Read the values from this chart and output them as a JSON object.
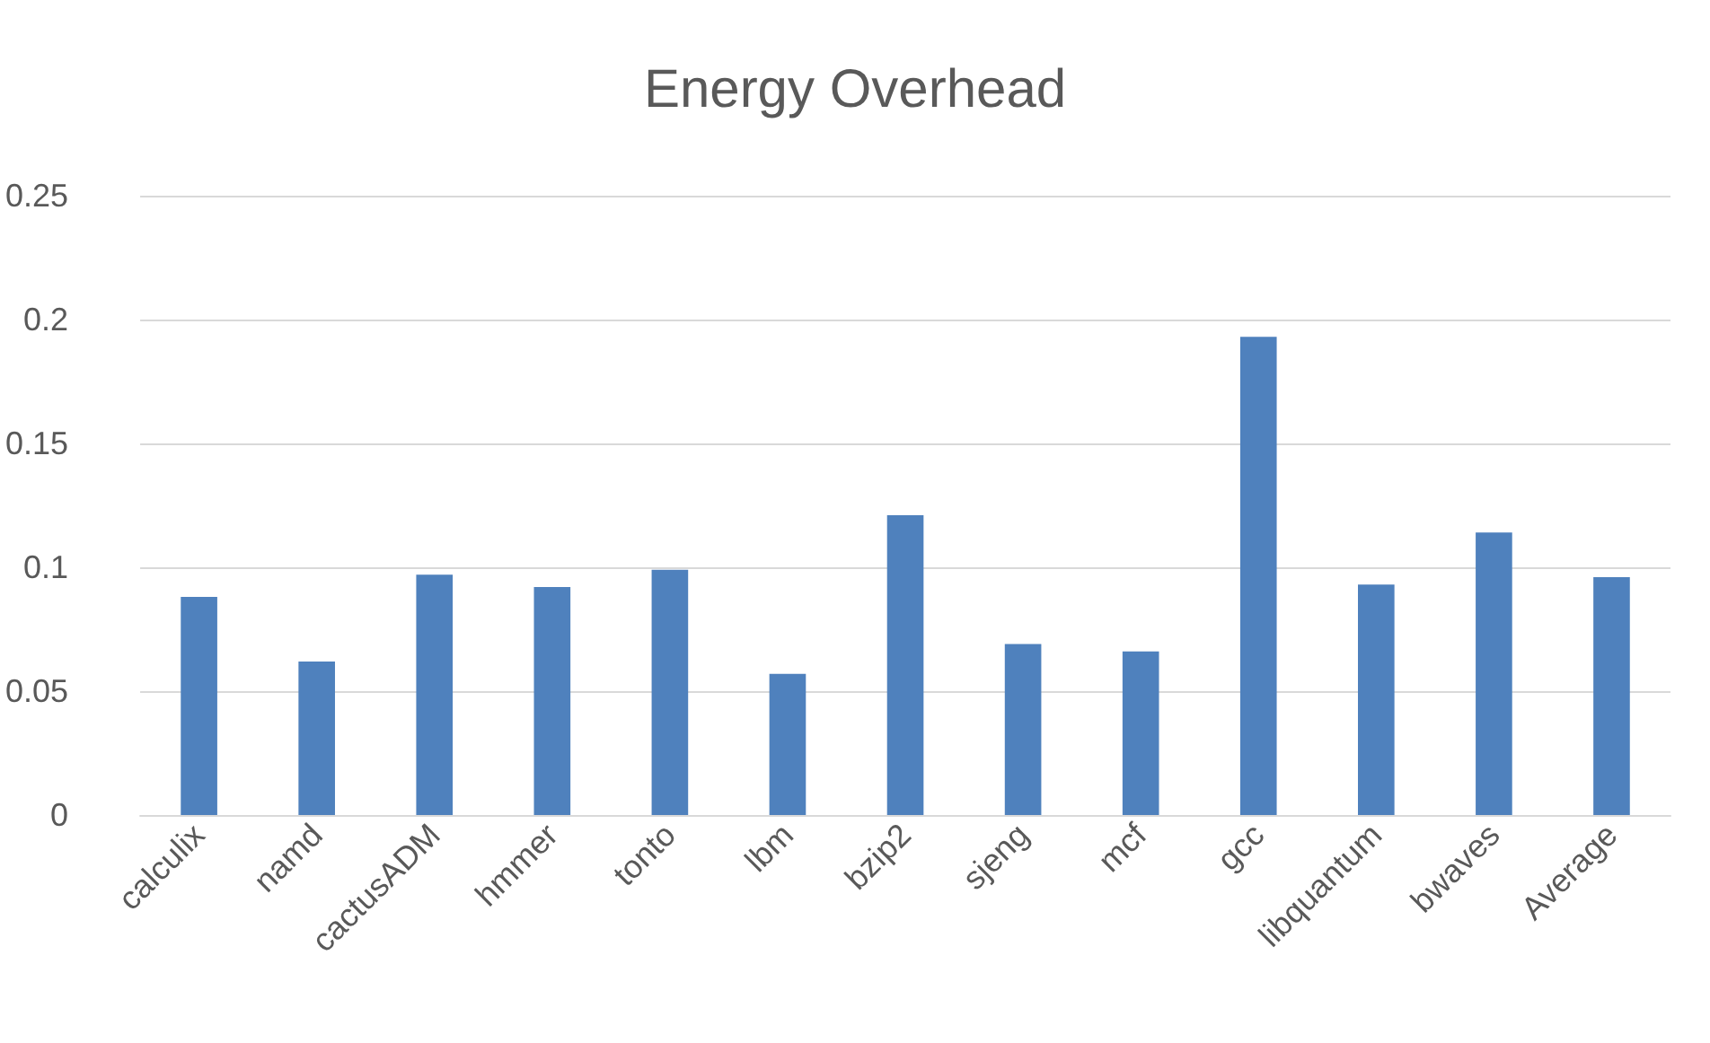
{
  "chart_data": {
    "type": "bar",
    "title": "Energy Overhead",
    "categories": [
      "calculix",
      "namd",
      "cactusADM",
      "hmmer",
      "tonto",
      "lbm",
      "bzip2",
      "sjeng",
      "mcf",
      "gcc",
      "libquantum",
      "bwaves",
      "Average"
    ],
    "values": [
      0.088,
      0.062,
      0.097,
      0.092,
      0.099,
      0.057,
      0.121,
      0.069,
      0.066,
      0.193,
      0.093,
      0.114,
      0.096
    ],
    "color": "#4f81bd",
    "ylim": [
      0,
      0.25
    ],
    "yticks": [
      0,
      0.05,
      0.1,
      0.15,
      0.2,
      0.25
    ],
    "grid": "y"
  }
}
